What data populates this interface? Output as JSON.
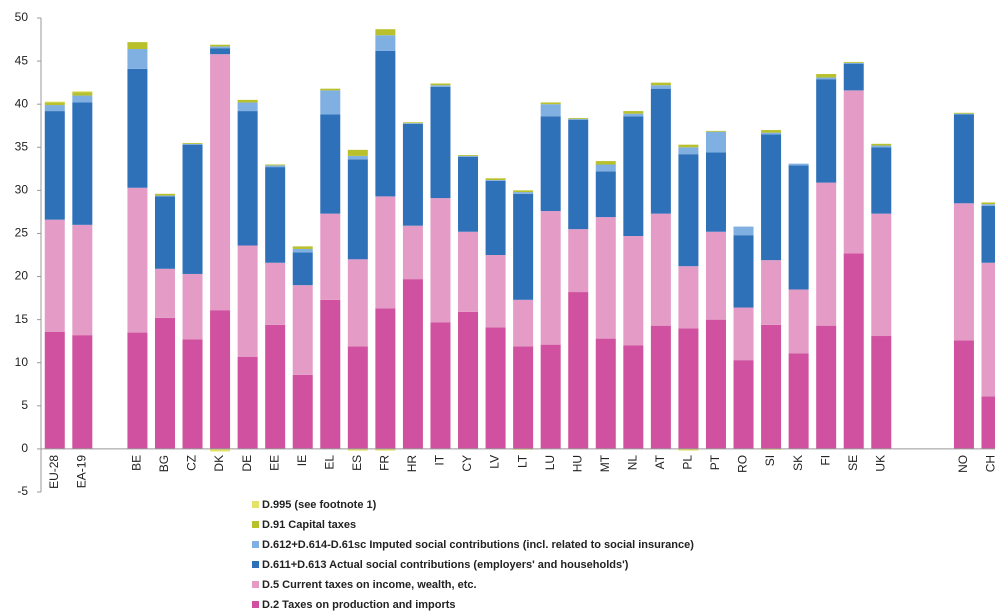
{
  "chart_data": {
    "type": "stacked_bar",
    "categories": [
      "EU-28",
      "EA-19",
      null,
      "BE",
      "BG",
      "CZ",
      "DK",
      "DE",
      "EE",
      "IE",
      "EL",
      "ES",
      "FR",
      "HR",
      "IT",
      "CY",
      "LV",
      "LT",
      "LU",
      "HU",
      "MT",
      "NL",
      "AT",
      "PL",
      "PT",
      "RO",
      "SI",
      "SK",
      "FI",
      "SE",
      "UK",
      null,
      null,
      "NO",
      "CH"
    ],
    "series": [
      {
        "name": "D.995 (see footnote 1)",
        "color": "#e3e36a",
        "values": [
          0.1,
          0.1,
          null,
          0,
          0,
          0,
          -0.3,
          0,
          0,
          0,
          0,
          -0.2,
          -0.2,
          0,
          0,
          0,
          0,
          -0.1,
          0,
          0,
          0,
          0,
          0,
          -0.2,
          0,
          0,
          -0.1,
          0,
          0,
          0,
          0,
          null,
          null,
          0,
          0
        ]
      },
      {
        "name": "D.91 Capital taxes",
        "color": "#b8c12c",
        "values": [
          0.3,
          0.4,
          null,
          0.8,
          0.2,
          0.1,
          0.2,
          0.3,
          0.1,
          0.3,
          0.2,
          0.7,
          0.7,
          0.1,
          0.2,
          0.1,
          0.2,
          0.2,
          0.2,
          0.1,
          0.4,
          0.3,
          0.3,
          0.3,
          0.1,
          0,
          0.3,
          0,
          0.4,
          0.1,
          0.2,
          null,
          null,
          0.1,
          0.2
        ]
      },
      {
        "name": "D.612+D.614-D.61sc Imputed social contributions (incl. related to social insurance)",
        "color": "#80afe1",
        "values": [
          0.7,
          0.8,
          null,
          2.3,
          0.1,
          0.1,
          0.2,
          1.0,
          0.2,
          0.4,
          2.8,
          0.4,
          1.8,
          0.1,
          0.2,
          0.1,
          0.1,
          0.2,
          1.4,
          0.1,
          0.8,
          0.3,
          0.4,
          0.8,
          2.4,
          1.0,
          0.2,
          0.2,
          0.2,
          0.1,
          0.2,
          null,
          null,
          0.1,
          0.2
        ]
      },
      {
        "name": "D.611+D.613 Actual social contributions (employers' and households')",
        "color": "#2f71b8",
        "values": [
          12.6,
          14.2,
          null,
          13.8,
          8.4,
          15.0,
          0.7,
          15.6,
          11.1,
          3.8,
          11.5,
          11.6,
          16.9,
          11.8,
          12.9,
          8.7,
          8.6,
          12.3,
          11.0,
          12.7,
          5.3,
          13.9,
          14.5,
          13.0,
          9.2,
          8.4,
          14.6,
          14.4,
          12.0,
          3.1,
          7.7,
          null,
          null,
          10.3,
          6.6
        ]
      },
      {
        "name": "D.5 Current taxes on income, wealth, etc.",
        "color": "#e49cc7",
        "values": [
          13.0,
          12.8,
          null,
          16.8,
          5.7,
          7.6,
          29.7,
          12.9,
          7.2,
          10.4,
          10.0,
          10.1,
          13.0,
          6.2,
          14.4,
          9.3,
          8.4,
          5.4,
          15.5,
          7.3,
          14.1,
          12.7,
          13.0,
          7.2,
          10.2,
          6.1,
          7.5,
          7.4,
          16.6,
          18.9,
          14.2,
          null,
          null,
          15.9,
          15.5
        ]
      },
      {
        "name": "D.2 Taxes on production and imports",
        "color": "#cf519f",
        "values": [
          13.6,
          13.2,
          null,
          13.5,
          15.2,
          12.7,
          16.1,
          10.7,
          14.4,
          8.6,
          17.3,
          11.9,
          16.3,
          19.7,
          14.7,
          15.9,
          14.1,
          11.9,
          12.1,
          18.2,
          12.8,
          12.0,
          14.3,
          14.0,
          15.0,
          10.3,
          14.4,
          11.1,
          14.3,
          22.7,
          13.1,
          null,
          null,
          12.6,
          6.1
        ]
      }
    ],
    "ylim": [
      -5,
      50
    ],
    "yticks": [
      -5,
      0,
      5,
      10,
      15,
      20,
      25,
      30,
      35,
      40,
      45,
      50
    ],
    "grid": false
  }
}
